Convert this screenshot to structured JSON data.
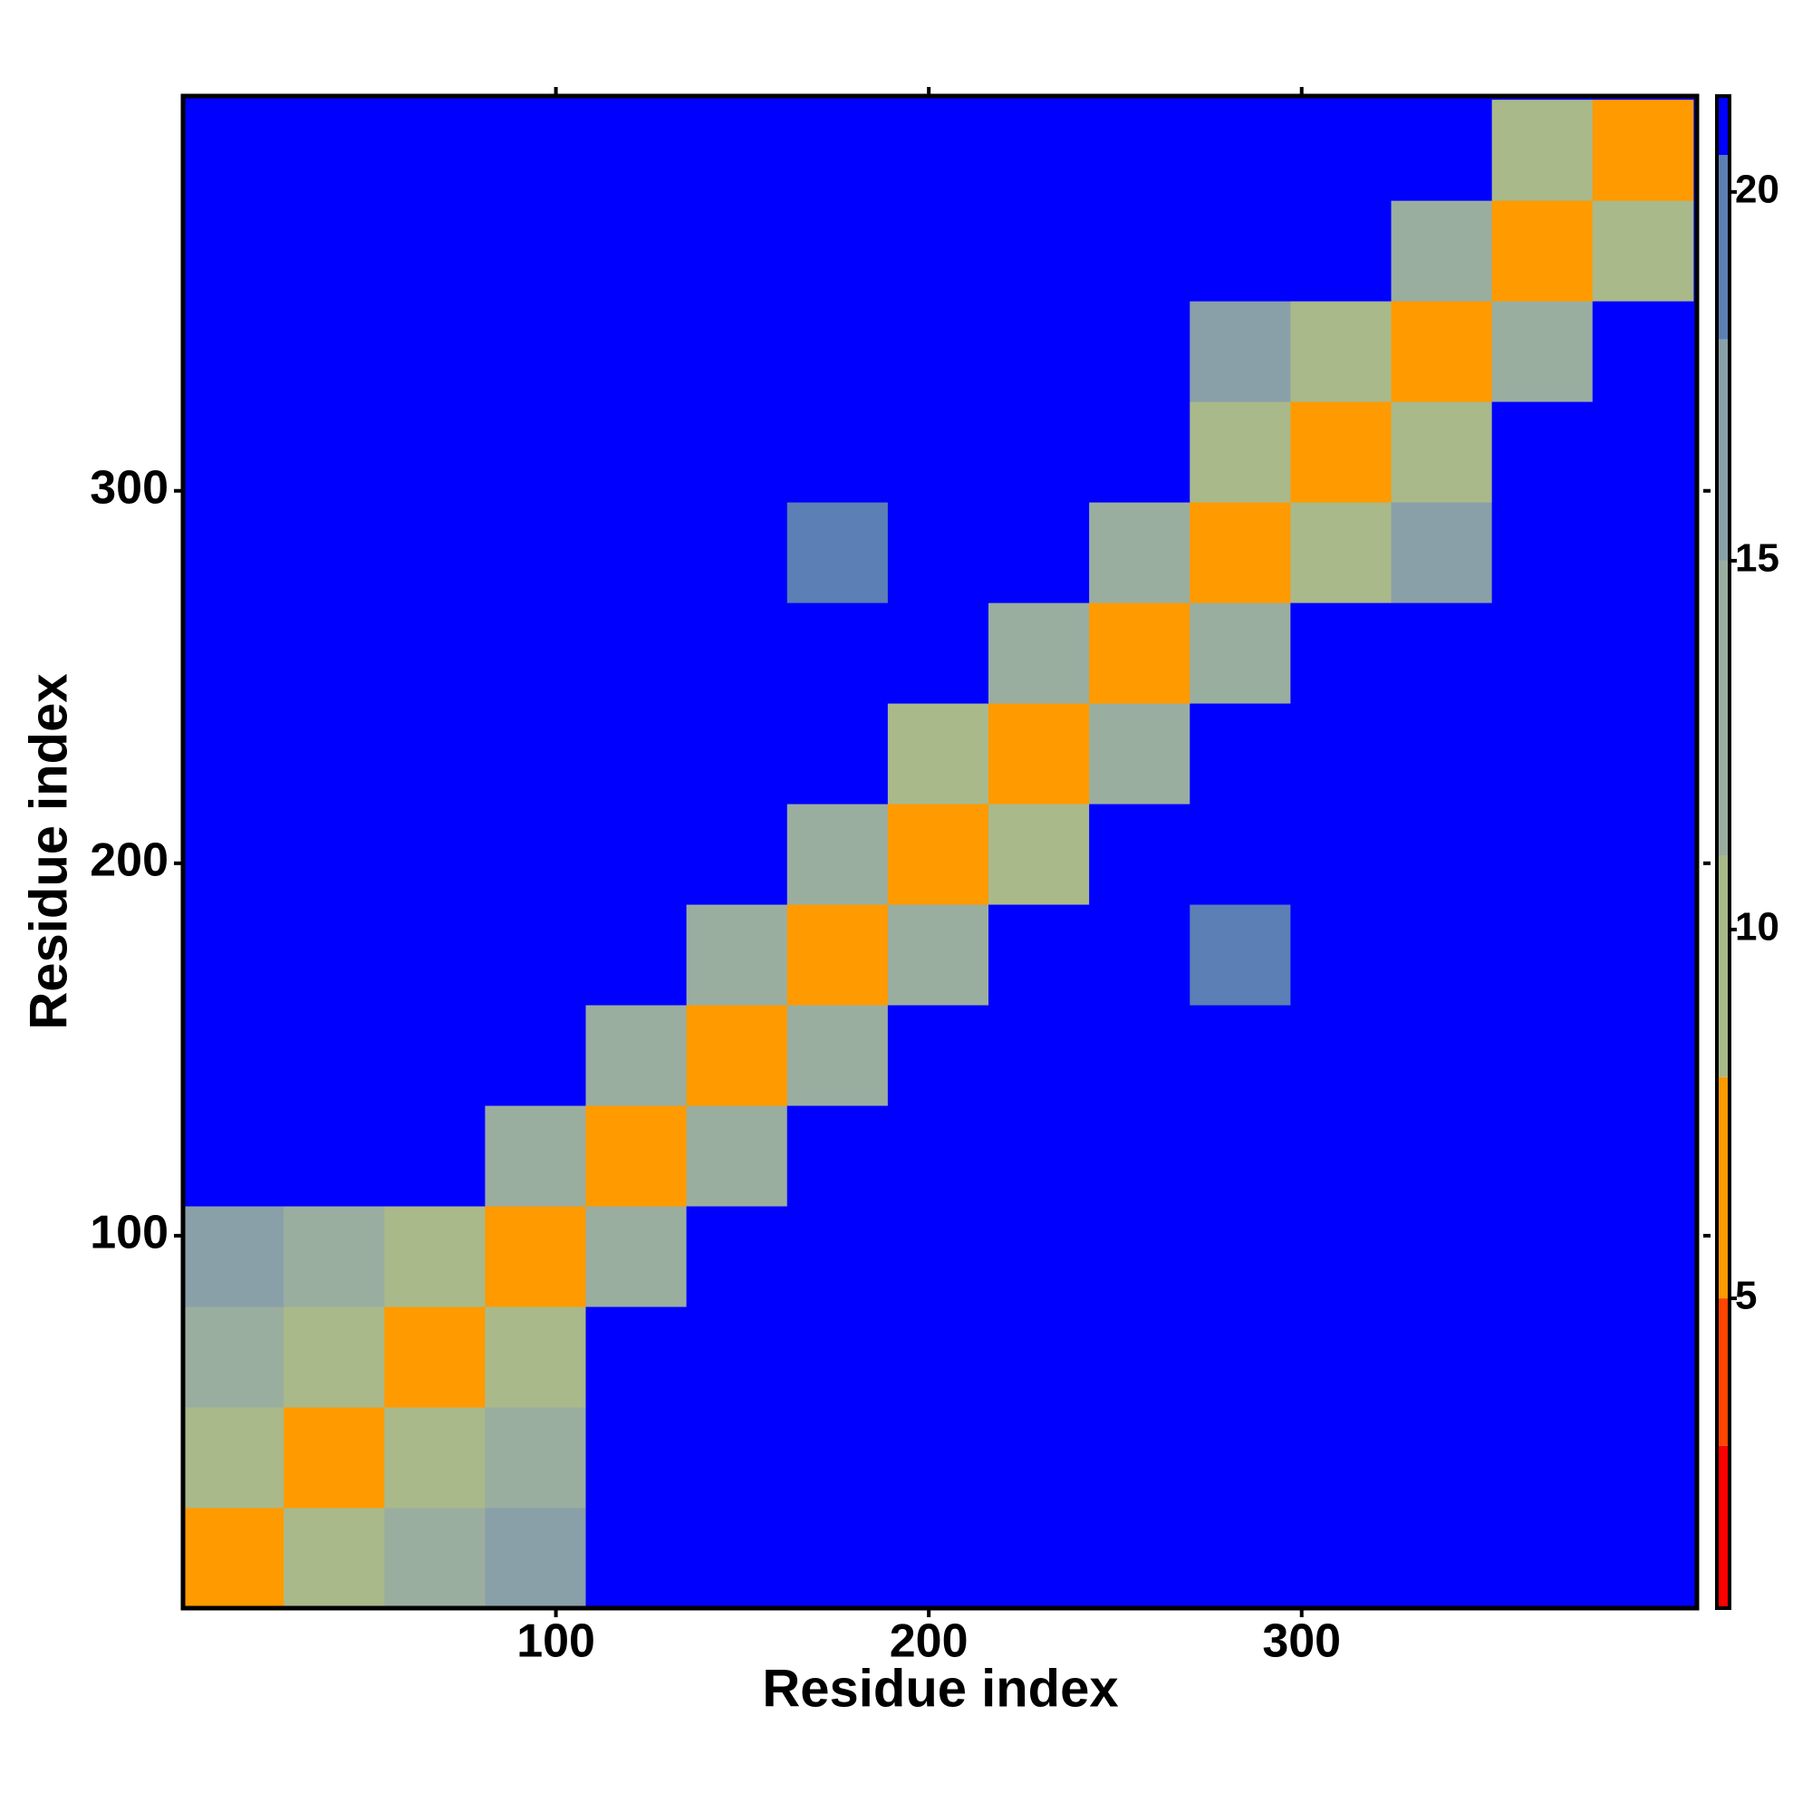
{
  "chart_data": {
    "type": "heatmap",
    "xlabel": "Residue index",
    "ylabel": "Residue index",
    "bins": [
      0,
      27,
      54,
      81,
      108,
      135,
      162,
      189,
      216,
      243,
      270,
      297,
      324,
      351,
      378,
      405
    ],
    "xlim": [
      0,
      406
    ],
    "ylim": [
      0,
      406
    ],
    "xticks": [
      100,
      200,
      300
    ],
    "yticks": [
      100,
      200,
      300
    ],
    "z": [
      [
        6,
        11,
        13,
        16,
        21,
        21,
        21,
        21,
        21,
        21,
        21,
        21,
        21,
        21,
        21
      ],
      [
        11,
        6,
        11,
        14,
        21,
        21,
        21,
        21,
        21,
        21,
        21,
        21,
        21,
        21,
        21
      ],
      [
        13,
        11,
        6,
        10,
        21,
        21,
        21,
        21,
        21,
        21,
        21,
        21,
        21,
        21,
        21
      ],
      [
        16,
        14,
        10,
        6,
        13,
        21,
        21,
        21,
        21,
        21,
        21,
        21,
        21,
        21,
        21
      ],
      [
        21,
        21,
        21,
        13,
        6,
        13,
        21,
        21,
        21,
        21,
        21,
        21,
        21,
        21,
        21
      ],
      [
        21,
        21,
        21,
        21,
        13,
        6,
        13,
        21,
        21,
        21,
        21,
        21,
        21,
        21,
        21
      ],
      [
        21,
        21,
        21,
        21,
        21,
        13,
        6,
        13,
        21,
        21,
        20,
        21,
        21,
        21,
        21
      ],
      [
        21,
        21,
        21,
        21,
        21,
        21,
        13,
        6,
        10,
        21,
        21,
        21,
        21,
        21,
        21
      ],
      [
        21,
        21,
        21,
        21,
        21,
        21,
        21,
        10,
        6,
        13,
        21,
        21,
        21,
        21,
        21
      ],
      [
        21,
        21,
        21,
        21,
        21,
        21,
        21,
        21,
        13,
        6,
        13,
        21,
        21,
        21,
        21
      ],
      [
        21,
        21,
        21,
        21,
        21,
        21,
        20,
        21,
        21,
        13,
        6,
        10,
        17,
        21,
        21
      ],
      [
        21,
        21,
        21,
        21,
        21,
        21,
        21,
        21,
        21,
        21,
        10,
        6,
        11,
        21,
        21
      ],
      [
        21,
        21,
        21,
        21,
        21,
        21,
        21,
        21,
        21,
        21,
        17,
        11,
        6,
        13,
        21
      ],
      [
        21,
        21,
        21,
        21,
        21,
        21,
        21,
        21,
        21,
        21,
        21,
        21,
        13,
        6,
        11
      ],
      [
        21,
        21,
        21,
        21,
        21,
        21,
        21,
        21,
        21,
        21,
        21,
        21,
        21,
        11,
        6
      ]
    ],
    "colorbar": {
      "lim": [
        0.8,
        21.3
      ],
      "ticks": [
        5,
        10,
        15,
        20
      ],
      "stops": [
        {
          "value": 3,
          "color": "#ff0000"
        },
        {
          "value": 5,
          "color": "#ff4500"
        },
        {
          "value": 8,
          "color": "#ff9a00"
        },
        {
          "value": 11,
          "color": "#a9b98a"
        },
        {
          "value": 15,
          "color": "#9aaea0"
        },
        {
          "value": 18,
          "color": "#8aa0a8"
        },
        {
          "value": 20.5,
          "color": "#5c7fb5"
        },
        {
          "value": 21.3,
          "color": "#0000ff"
        }
      ]
    }
  }
}
